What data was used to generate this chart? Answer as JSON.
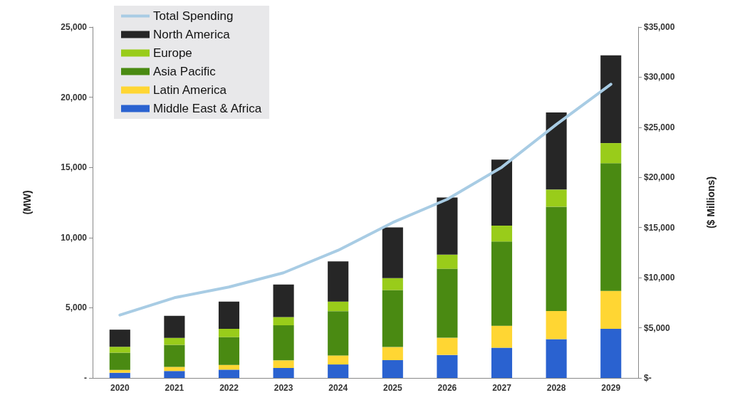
{
  "chart_data": {
    "type": "bar",
    "stacked": true,
    "categories": [
      "2020",
      "2021",
      "2022",
      "2023",
      "2024",
      "2025",
      "2026",
      "2027",
      "2028",
      "2029"
    ],
    "ylabel": "(MW)",
    "y2label": "($ Millions)",
    "ylim": [
      0,
      25000
    ],
    "yticks": [
      {
        "value": 0,
        "label": "-"
      },
      {
        "value": 5000,
        "label": "5,000"
      },
      {
        "value": 10000,
        "label": "10,000"
      },
      {
        "value": 15000,
        "label": "15,000"
      },
      {
        "value": 20000,
        "label": "20,000"
      },
      {
        "value": 25000,
        "label": "25,000"
      }
    ],
    "y2lim": [
      0,
      35000
    ],
    "y2ticks": [
      {
        "value": 0,
        "label": "$-"
      },
      {
        "value": 5000,
        "label": "$5,000"
      },
      {
        "value": 10000,
        "label": "$10,000"
      },
      {
        "value": 15000,
        "label": "$15,000"
      },
      {
        "value": 20000,
        "label": "$20,000"
      },
      {
        "value": 25000,
        "label": "$25,000"
      },
      {
        "value": 30000,
        "label": "$30,000"
      },
      {
        "value": 35000,
        "label": "$35,000"
      }
    ],
    "grid": false,
    "legend": "top left",
    "marker": "none",
    "series": [
      {
        "name": "Middle East & Africa",
        "color": "#2a62d0",
        "values": [
          370,
          490,
          590,
          710,
          960,
          1270,
          1640,
          2150,
          2770,
          3500
        ]
      },
      {
        "name": "Latin America",
        "color": "#ffd633",
        "values": [
          200,
          300,
          340,
          540,
          640,
          930,
          1220,
          1570,
          2000,
          2700
        ]
      },
      {
        "name": "Asia Pacific",
        "color": "#4a8a12",
        "values": [
          1230,
          1570,
          1980,
          2500,
          3160,
          4060,
          4920,
          6000,
          7430,
          9100
        ]
      },
      {
        "name": "Europe",
        "color": "#99cc1a",
        "values": [
          420,
          490,
          590,
          590,
          680,
          850,
          1000,
          1130,
          1220,
          1430
        ]
      },
      {
        "name": "North America",
        "color": "#262626",
        "values": [
          1220,
          1570,
          1940,
          2320,
          2870,
          3620,
          4070,
          4700,
          5490,
          6250
        ]
      },
      {
        "name": "Total Spending",
        "type": "line",
        "axis": "y2",
        "line_style": "solid",
        "color": "#a8cce4",
        "values": [
          6270,
          8000,
          9070,
          10490,
          12730,
          15500,
          17820,
          21020,
          25280,
          29300
        ]
      }
    ]
  }
}
